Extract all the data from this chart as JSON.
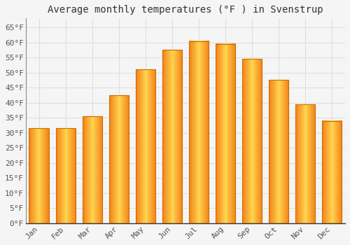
{
  "title": "Average monthly temperatures (°F ) in Svenstrup",
  "months": [
    "Jan",
    "Feb",
    "Mar",
    "Apr",
    "May",
    "Jun",
    "Jul",
    "Aug",
    "Sep",
    "Oct",
    "Nov",
    "Dec"
  ],
  "values": [
    31.5,
    31.5,
    35.5,
    42.5,
    51.0,
    57.5,
    60.5,
    59.5,
    54.5,
    47.5,
    39.5,
    34.0
  ],
  "bar_color_center": "#FFB300",
  "bar_color_edge": "#F57F00",
  "background_color": "#f5f5f5",
  "plot_bg_color": "#f5f5f5",
  "grid_color": "#dddddd",
  "ylim": [
    0,
    68
  ],
  "yticks": [
    0,
    5,
    10,
    15,
    20,
    25,
    30,
    35,
    40,
    45,
    50,
    55,
    60,
    65
  ],
  "ytick_labels": [
    "0°F",
    "5°F",
    "10°F",
    "15°F",
    "20°F",
    "25°F",
    "30°F",
    "35°F",
    "40°F",
    "45°F",
    "50°F",
    "55°F",
    "60°F",
    "65°F"
  ],
  "title_fontsize": 10,
  "tick_fontsize": 8,
  "font_family": "monospace",
  "text_color": "#555555",
  "bar_width": 0.75
}
